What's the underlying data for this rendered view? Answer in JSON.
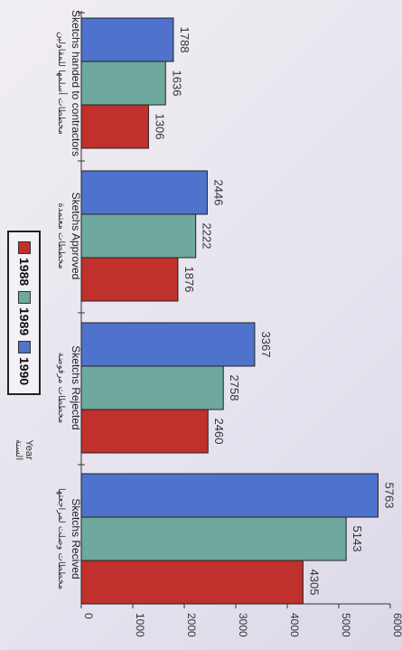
{
  "chart_data": {
    "type": "bar",
    "orientation": "horizontal",
    "categories": [
      {
        "en": "Sketchs handed to contractors",
        "ar": "مخططات أسلمها للمقاولين"
      },
      {
        "en": "Sketchs Approved",
        "ar": "مخططات معتمدة"
      },
      {
        "en": "Sketchs Rejected",
        "ar": "مخططات مرفوضة"
      },
      {
        "en": "Sketchs Recived",
        "ar": "مخططات وصلت لمراجعتها"
      }
    ],
    "series": [
      {
        "name": "1988",
        "color": "#c0302c",
        "values": [
          1306,
          1876,
          2460,
          4305
        ]
      },
      {
        "name": "1989",
        "color": "#6fa89c",
        "values": [
          1636,
          2222,
          2758,
          5143
        ]
      },
      {
        "name": "1990",
        "color": "#4f72cc",
        "values": [
          1788,
          2446,
          3367,
          5763
        ]
      }
    ],
    "axis_title": {
      "en": "Year",
      "ar": "السنة"
    },
    "value_axis": {
      "min": 0,
      "max": 6000,
      "ticks": [
        0,
        1000,
        2000,
        3000,
        4000,
        5000,
        6000
      ],
      "tick_labels": [
        "0",
        "1000",
        "2000",
        "3000",
        "4000",
        "5000",
        "6000"
      ]
    },
    "legend_position": "left-middle",
    "grid": false
  }
}
